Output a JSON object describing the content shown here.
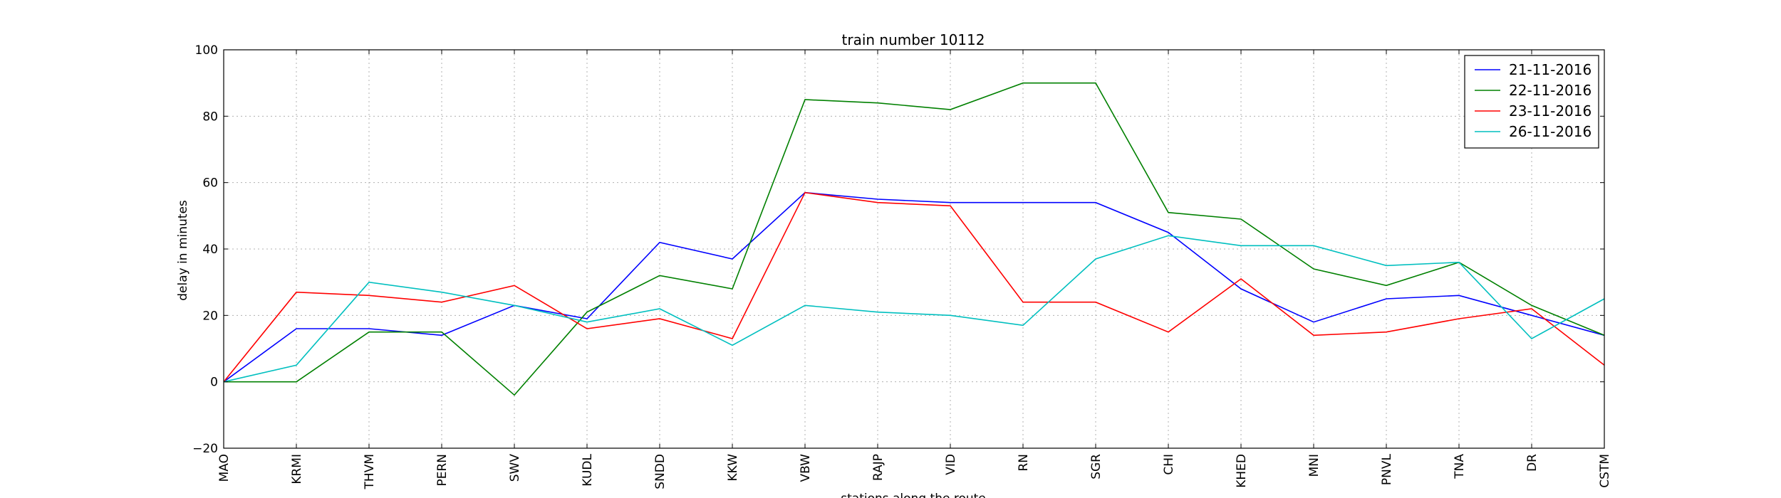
{
  "chart_data": {
    "type": "line",
    "title": "train number 10112",
    "xlabel": "stations along the route",
    "ylabel": "delay in minutes",
    "ylim": [
      -20,
      100
    ],
    "yticks": [
      -20,
      0,
      20,
      40,
      60,
      80,
      100
    ],
    "grid": true,
    "legend_position": "top-right",
    "categories": [
      "MAO",
      "KRMI",
      "THVM",
      "PERN",
      "SWV",
      "KUDL",
      "SNDD",
      "KKW",
      "VBW",
      "RAJP",
      "VID",
      "RN",
      "SGR",
      "CHI",
      "KHED",
      "MNI",
      "PNVL",
      "TNA",
      "DR",
      "CSTM"
    ],
    "series": [
      {
        "name": "21-11-2016",
        "color": "#0000ff",
        "values": [
          0,
          16,
          16,
          14,
          23,
          19,
          42,
          37,
          57,
          55,
          54,
          54,
          54,
          45,
          28,
          18,
          25,
          26,
          20,
          14
        ]
      },
      {
        "name": "22-11-2016",
        "color": "#008000",
        "values": [
          0,
          0,
          15,
          15,
          -4,
          21,
          32,
          28,
          85,
          84,
          82,
          90,
          90,
          51,
          49,
          34,
          29,
          36,
          23,
          14
        ]
      },
      {
        "name": "23-11-2016",
        "color": "#ff0000",
        "values": [
          0,
          27,
          26,
          24,
          29,
          16,
          19,
          13,
          57,
          54,
          53,
          24,
          24,
          15,
          31,
          14,
          15,
          19,
          22,
          5
        ]
      },
      {
        "name": "26-11-2016",
        "color": "#00bfbf",
        "values": [
          0,
          5,
          30,
          27,
          23,
          18,
          22,
          11,
          23,
          21,
          20,
          17,
          37,
          44,
          41,
          41,
          35,
          36,
          13,
          25
        ]
      }
    ]
  }
}
